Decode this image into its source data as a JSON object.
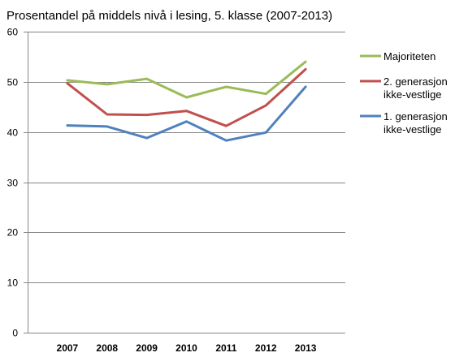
{
  "chart_data": {
    "type": "line",
    "title": "Prosentandel på middels nivå i lesing, 5. klasse (2007-2013)",
    "xlabel": "",
    "ylabel": "",
    "categories": [
      "2007",
      "2008",
      "2009",
      "2010",
      "2011",
      "2012",
      "2013"
    ],
    "ylim": [
      0,
      60
    ],
    "yticks": [
      0,
      10,
      20,
      30,
      40,
      50,
      60
    ],
    "grid": true,
    "legend_position": "right",
    "series": [
      {
        "name": "Majoriteten",
        "name_lines": [
          "Majoriteten"
        ],
        "color": "#9BBB59",
        "values": [
          50.3,
          49.5,
          50.6,
          46.9,
          49.0,
          47.6,
          54.0
        ]
      },
      {
        "name": "2. generasjon ikke-vestlige",
        "name_lines": [
          "2. generasjon",
          "ikke-vestlige"
        ],
        "color": "#C0504D",
        "values": [
          49.7,
          43.5,
          43.4,
          44.2,
          41.2,
          45.3,
          52.5
        ]
      },
      {
        "name": "1. generasjon ikke-vestlige",
        "name_lines": [
          "1. generasjon",
          "ikke-vestlige"
        ],
        "color": "#4F81BD",
        "values": [
          41.3,
          41.1,
          38.8,
          42.1,
          38.3,
          39.9,
          49.0
        ]
      }
    ]
  }
}
